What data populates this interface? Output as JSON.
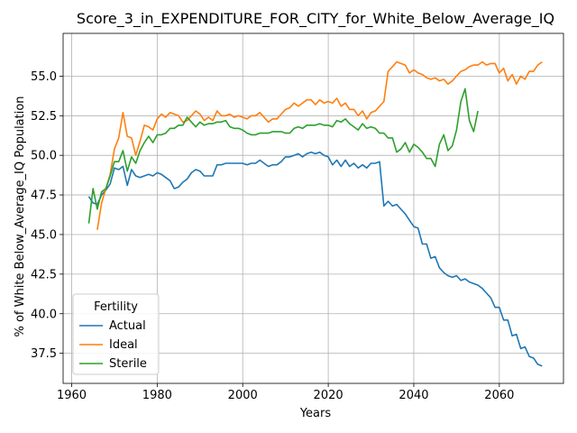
{
  "chart_data": {
    "type": "line",
    "title": "Score_3_in_EXPENDITURE_FOR_CITY_for_White_Below_Average_IQ",
    "xlabel": "Years",
    "ylabel": "% of White Below_Average_IQ Population",
    "xlim": [
      1958,
      2075
    ],
    "ylim": [
      35.6,
      57.7
    ],
    "xticks": [
      1960,
      1980,
      2000,
      2020,
      2040,
      2060
    ],
    "yticks": [
      37.5,
      40.0,
      42.5,
      45.0,
      47.5,
      50.0,
      52.5,
      55.0
    ],
    "ytick_labels": [
      "37.5",
      "40.0",
      "42.5",
      "45.0",
      "47.5",
      "50.0",
      "52.5",
      "55.0"
    ],
    "grid": true,
    "legend": {
      "title": "Fertility",
      "position": "bottom-left"
    },
    "series": [
      {
        "name": "Actual",
        "color": "#1f77b4",
        "x": [
          1964,
          1965,
          1966,
          1967,
          1968,
          1969,
          1970,
          1971,
          1972,
          1973,
          1974,
          1975,
          1976,
          1977,
          1978,
          1979,
          1980,
          1981,
          1982,
          1983,
          1984,
          1985,
          1986,
          1987,
          1988,
          1989,
          1990,
          1991,
          1992,
          1993,
          1994,
          1995,
          1996,
          1997,
          1998,
          1999,
          2000,
          2001,
          2002,
          2003,
          2004,
          2005,
          2006,
          2007,
          2008,
          2009,
          2010,
          2011,
          2012,
          2013,
          2014,
          2015,
          2016,
          2017,
          2018,
          2019,
          2020,
          2021,
          2022,
          2023,
          2024,
          2025,
          2026,
          2027,
          2028,
          2029,
          2030,
          2031,
          2032,
          2033,
          2034,
          2035,
          2036,
          2037,
          2038,
          2039,
          2040,
          2041,
          2042,
          2043,
          2044,
          2045,
          2046,
          2047,
          2048,
          2049,
          2050,
          2051,
          2052,
          2053,
          2054,
          2055,
          2056,
          2057,
          2058,
          2059,
          2060,
          2061,
          2062,
          2063,
          2064,
          2065,
          2066,
          2067,
          2068,
          2069,
          2070
        ],
        "values": [
          47.4,
          47.0,
          46.9,
          47.5,
          47.8,
          48.2,
          49.2,
          49.1,
          49.3,
          48.1,
          49.1,
          48.7,
          48.6,
          48.7,
          48.8,
          48.7,
          48.9,
          48.8,
          48.6,
          48.4,
          47.9,
          48.0,
          48.3,
          48.5,
          48.9,
          49.1,
          49.0,
          48.7,
          48.7,
          48.7,
          49.4,
          49.4,
          49.5,
          49.5,
          49.5,
          49.5,
          49.5,
          49.4,
          49.5,
          49.5,
          49.7,
          49.5,
          49.3,
          49.4,
          49.4,
          49.6,
          49.9,
          49.9,
          50.0,
          50.1,
          49.9,
          50.1,
          50.2,
          50.1,
          50.2,
          50.0,
          49.9,
          49.4,
          49.7,
          49.3,
          49.7,
          49.3,
          49.5,
          49.2,
          49.4,
          49.2,
          49.5,
          49.5,
          49.6,
          46.8,
          47.1,
          46.8,
          46.9,
          46.6,
          46.3,
          45.9,
          45.5,
          45.4,
          44.4,
          44.4,
          43.5,
          43.6,
          42.9,
          42.6,
          42.4,
          42.3,
          42.4,
          42.1,
          42.2,
          42.0,
          41.9,
          41.8,
          41.6,
          41.3,
          41.0,
          40.4,
          40.4,
          39.6,
          39.6,
          38.6,
          38.7,
          37.8,
          37.9,
          37.3,
          37.2,
          36.8,
          36.7
        ]
      },
      {
        "name": "Ideal",
        "color": "#ff7f0e",
        "x": [
          1966,
          1967,
          1968,
          1969,
          1970,
          1971,
          1972,
          1973,
          1974,
          1975,
          1976,
          1977,
          1978,
          1979,
          1980,
          1981,
          1982,
          1983,
          1984,
          1985,
          1986,
          1987,
          1988,
          1989,
          1990,
          1991,
          1992,
          1993,
          1994,
          1995,
          1996,
          1997,
          1998,
          1999,
          2000,
          2001,
          2002,
          2003,
          2004,
          2005,
          2006,
          2007,
          2008,
          2009,
          2010,
          2011,
          2012,
          2013,
          2014,
          2015,
          2016,
          2017,
          2018,
          2019,
          2020,
          2021,
          2022,
          2023,
          2024,
          2025,
          2026,
          2027,
          2028,
          2029,
          2030,
          2031,
          2032,
          2033,
          2034,
          2035,
          2036,
          2037,
          2038,
          2039,
          2040,
          2041,
          2042,
          2043,
          2044,
          2045,
          2046,
          2047,
          2048,
          2049,
          2050,
          2051,
          2052,
          2053,
          2054,
          2055,
          2056,
          2057,
          2058,
          2059,
          2060,
          2061,
          2062,
          2063,
          2064,
          2065,
          2066,
          2067,
          2068,
          2069,
          2070
        ],
        "values": [
          45.3,
          47.0,
          47.9,
          48.8,
          50.4,
          51.1,
          52.7,
          51.2,
          51.1,
          50.0,
          50.9,
          51.9,
          51.8,
          51.6,
          52.3,
          52.6,
          52.4,
          52.7,
          52.6,
          52.5,
          52.1,
          52.2,
          52.5,
          52.8,
          52.6,
          52.2,
          52.4,
          52.2,
          52.8,
          52.5,
          52.5,
          52.6,
          52.4,
          52.5,
          52.4,
          52.3,
          52.5,
          52.5,
          52.7,
          52.4,
          52.1,
          52.3,
          52.3,
          52.6,
          52.9,
          53.0,
          53.3,
          53.1,
          53.3,
          53.5,
          53.5,
          53.2,
          53.5,
          53.3,
          53.4,
          53.3,
          53.6,
          53.1,
          53.3,
          52.9,
          52.9,
          52.5,
          52.8,
          52.3,
          52.7,
          52.8,
          53.1,
          53.4,
          55.3,
          55.6,
          55.9,
          55.8,
          55.7,
          55.2,
          55.4,
          55.2,
          55.1,
          54.9,
          54.8,
          54.9,
          54.7,
          54.8,
          54.5,
          54.7,
          55.0,
          55.3,
          55.4,
          55.6,
          55.7,
          55.7,
          55.9,
          55.7,
          55.8,
          55.8,
          55.2,
          55.5,
          54.7,
          55.1,
          54.5,
          55.0,
          54.8,
          55.3,
          55.3,
          55.7,
          55.9
        ]
      },
      {
        "name": "Sterile",
        "color": "#2ca02c",
        "x": [
          1964,
          1965,
          1966,
          1967,
          1968,
          1969,
          1970,
          1971,
          1972,
          1973,
          1974,
          1975,
          1976,
          1977,
          1978,
          1979,
          1980,
          1981,
          1982,
          1983,
          1984,
          1985,
          1986,
          1987,
          1988,
          1989,
          1990,
          1991,
          1992,
          1993,
          1994,
          1995,
          1996,
          1997,
          1998,
          1999,
          2000,
          2001,
          2002,
          2003,
          2004,
          2005,
          2006,
          2007,
          2008,
          2009,
          2010,
          2011,
          2012,
          2013,
          2014,
          2015,
          2016,
          2017,
          2018,
          2019,
          2020,
          2021,
          2022,
          2023,
          2024,
          2025,
          2026,
          2027,
          2028,
          2029,
          2030,
          2031,
          2032,
          2033,
          2034,
          2035,
          2036,
          2037,
          2038,
          2039,
          2040,
          2041,
          2042,
          2043,
          2044,
          2045,
          2046,
          2047,
          2048,
          2049,
          2050,
          2051,
          2052,
          2053,
          2054,
          2055
        ],
        "values": [
          45.7,
          47.9,
          46.6,
          47.7,
          47.9,
          48.7,
          49.6,
          49.6,
          50.3,
          49.0,
          49.9,
          49.5,
          50.3,
          50.8,
          51.2,
          50.8,
          51.3,
          51.3,
          51.4,
          51.7,
          51.7,
          51.9,
          51.9,
          52.4,
          52.1,
          51.8,
          52.1,
          51.9,
          52.0,
          52.0,
          52.1,
          52.1,
          52.2,
          51.8,
          51.7,
          51.7,
          51.6,
          51.4,
          51.3,
          51.3,
          51.4,
          51.4,
          51.4,
          51.5,
          51.5,
          51.5,
          51.4,
          51.4,
          51.7,
          51.8,
          51.7,
          51.9,
          51.9,
          51.9,
          52.0,
          51.9,
          51.9,
          51.8,
          52.2,
          52.1,
          52.3,
          52.0,
          51.8,
          51.6,
          52.0,
          51.7,
          51.8,
          51.7,
          51.4,
          51.4,
          51.1,
          51.1,
          50.2,
          50.4,
          50.8,
          50.2,
          50.7,
          50.5,
          50.2,
          49.8,
          49.8,
          49.3,
          50.7,
          51.3,
          50.3,
          50.6,
          51.6,
          53.4,
          54.2,
          52.2,
          51.5,
          52.8
        ]
      }
    ]
  }
}
